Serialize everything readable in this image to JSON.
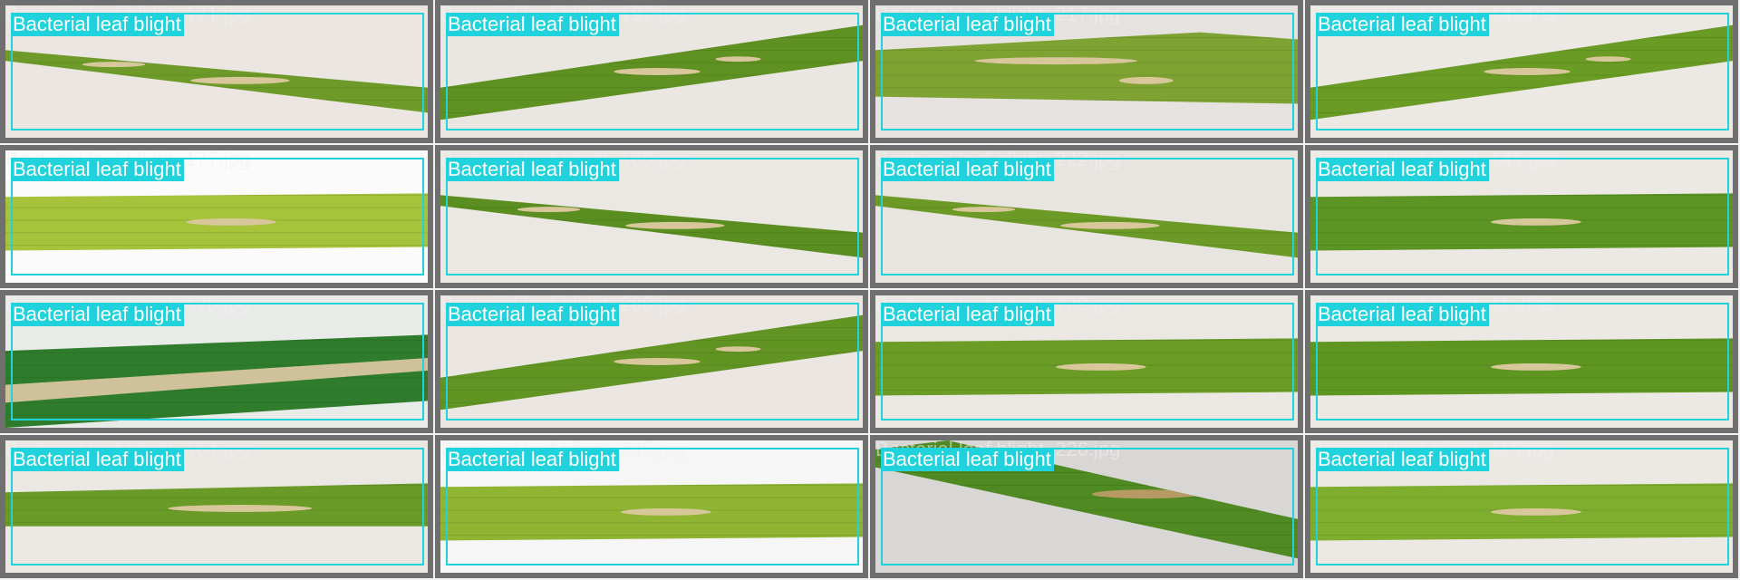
{
  "label_color": "#1fd2dc",
  "tiles": [
    {
      "file": "Bacterial leaf blight_171.jpg",
      "label": "Bacterial leaf blight",
      "bg": "#ebe6e1",
      "leaf": "#6e9a2a",
      "variant": "diag-down"
    },
    {
      "file": "Bacterial leaf blight_197.jpg",
      "label": "Bacterial leaf blight",
      "bg": "#eae6e2",
      "leaf": "#5f9122",
      "variant": "diag-up"
    },
    {
      "file": "Bacterial leaf blight_217.jpg",
      "label": "Bacterial leaf blight",
      "bg": "#e6e2df",
      "leaf": "#7fa333",
      "variant": "band-top"
    },
    {
      "file": "Bacterial leaf blight_14.JPG",
      "label": "Bacterial leaf blight",
      "bg": "#ece8e4",
      "leaf": "#6a9b24",
      "variant": "diag-up"
    },
    {
      "file": "Bacterial leaf blight_177.jpg",
      "label": "Bacterial leaf blight",
      "bg": "#fbfbfb",
      "leaf": "#a7c23b",
      "variant": "band"
    },
    {
      "file": "Bacterial leaf blight_168.jpg",
      "label": "Bacterial leaf blight",
      "bg": "#ebe7e3",
      "leaf": "#5b8e20",
      "variant": "diag-down"
    },
    {
      "file": "Bacterial leaf blight_222.jpg",
      "label": "Bacterial leaf blight",
      "bg": "#e8e4e0",
      "leaf": "#6c9a26",
      "variant": "diag-down"
    },
    {
      "file": "Bacterial leaf blight_141.jpg",
      "label": "Bacterial leaf blight",
      "bg": "#ece8e4",
      "leaf": "#5d9524",
      "variant": "band"
    },
    {
      "file": "Bacterial leaf blight_178.jpg",
      "label": "Bacterial leaf blight",
      "bg": "#e9ebe9",
      "leaf": "#2f7d2c",
      "variant": "diag-up-wide"
    },
    {
      "file": "Bacterial leaf blight_200.jpg",
      "label": "Bacterial leaf blight",
      "bg": "#ebe6e2",
      "leaf": "#629424",
      "variant": "diag-up"
    },
    {
      "file": "Bacterial leaf blight_229.jpg",
      "label": "Bacterial leaf blight",
      "bg": "#ebe7e3",
      "leaf": "#6a9c26",
      "variant": "band"
    },
    {
      "file": "Bacterial leaf blight_11.JPG",
      "label": "Bacterial leaf blight",
      "bg": "#ece8e4",
      "leaf": "#5f9622",
      "variant": "band"
    },
    {
      "file": "Bacterial leaf blight_164.jpg",
      "label": "Bacterial leaf blight",
      "bg": "#ebe7e3",
      "leaf": "#6a9a28",
      "variant": "band-thin"
    },
    {
      "file": "Bacterial leaf blight_245.jpg",
      "label": "Bacterial leaf blight",
      "bg": "#f6f6f6",
      "leaf": "#8fb533",
      "variant": "band"
    },
    {
      "file": "Bacterial leaf blight_226.jpg",
      "label": "Bacterial leaf blight",
      "bg": "#d9d7d6",
      "leaf": "#4f8a22",
      "variant": "diag-steep"
    },
    {
      "file": "Bacterial leaf blight_115.jpg",
      "label": "Bacterial leaf blight",
      "bg": "#ece8e4",
      "leaf": "#7fae2e",
      "variant": "band"
    }
  ]
}
